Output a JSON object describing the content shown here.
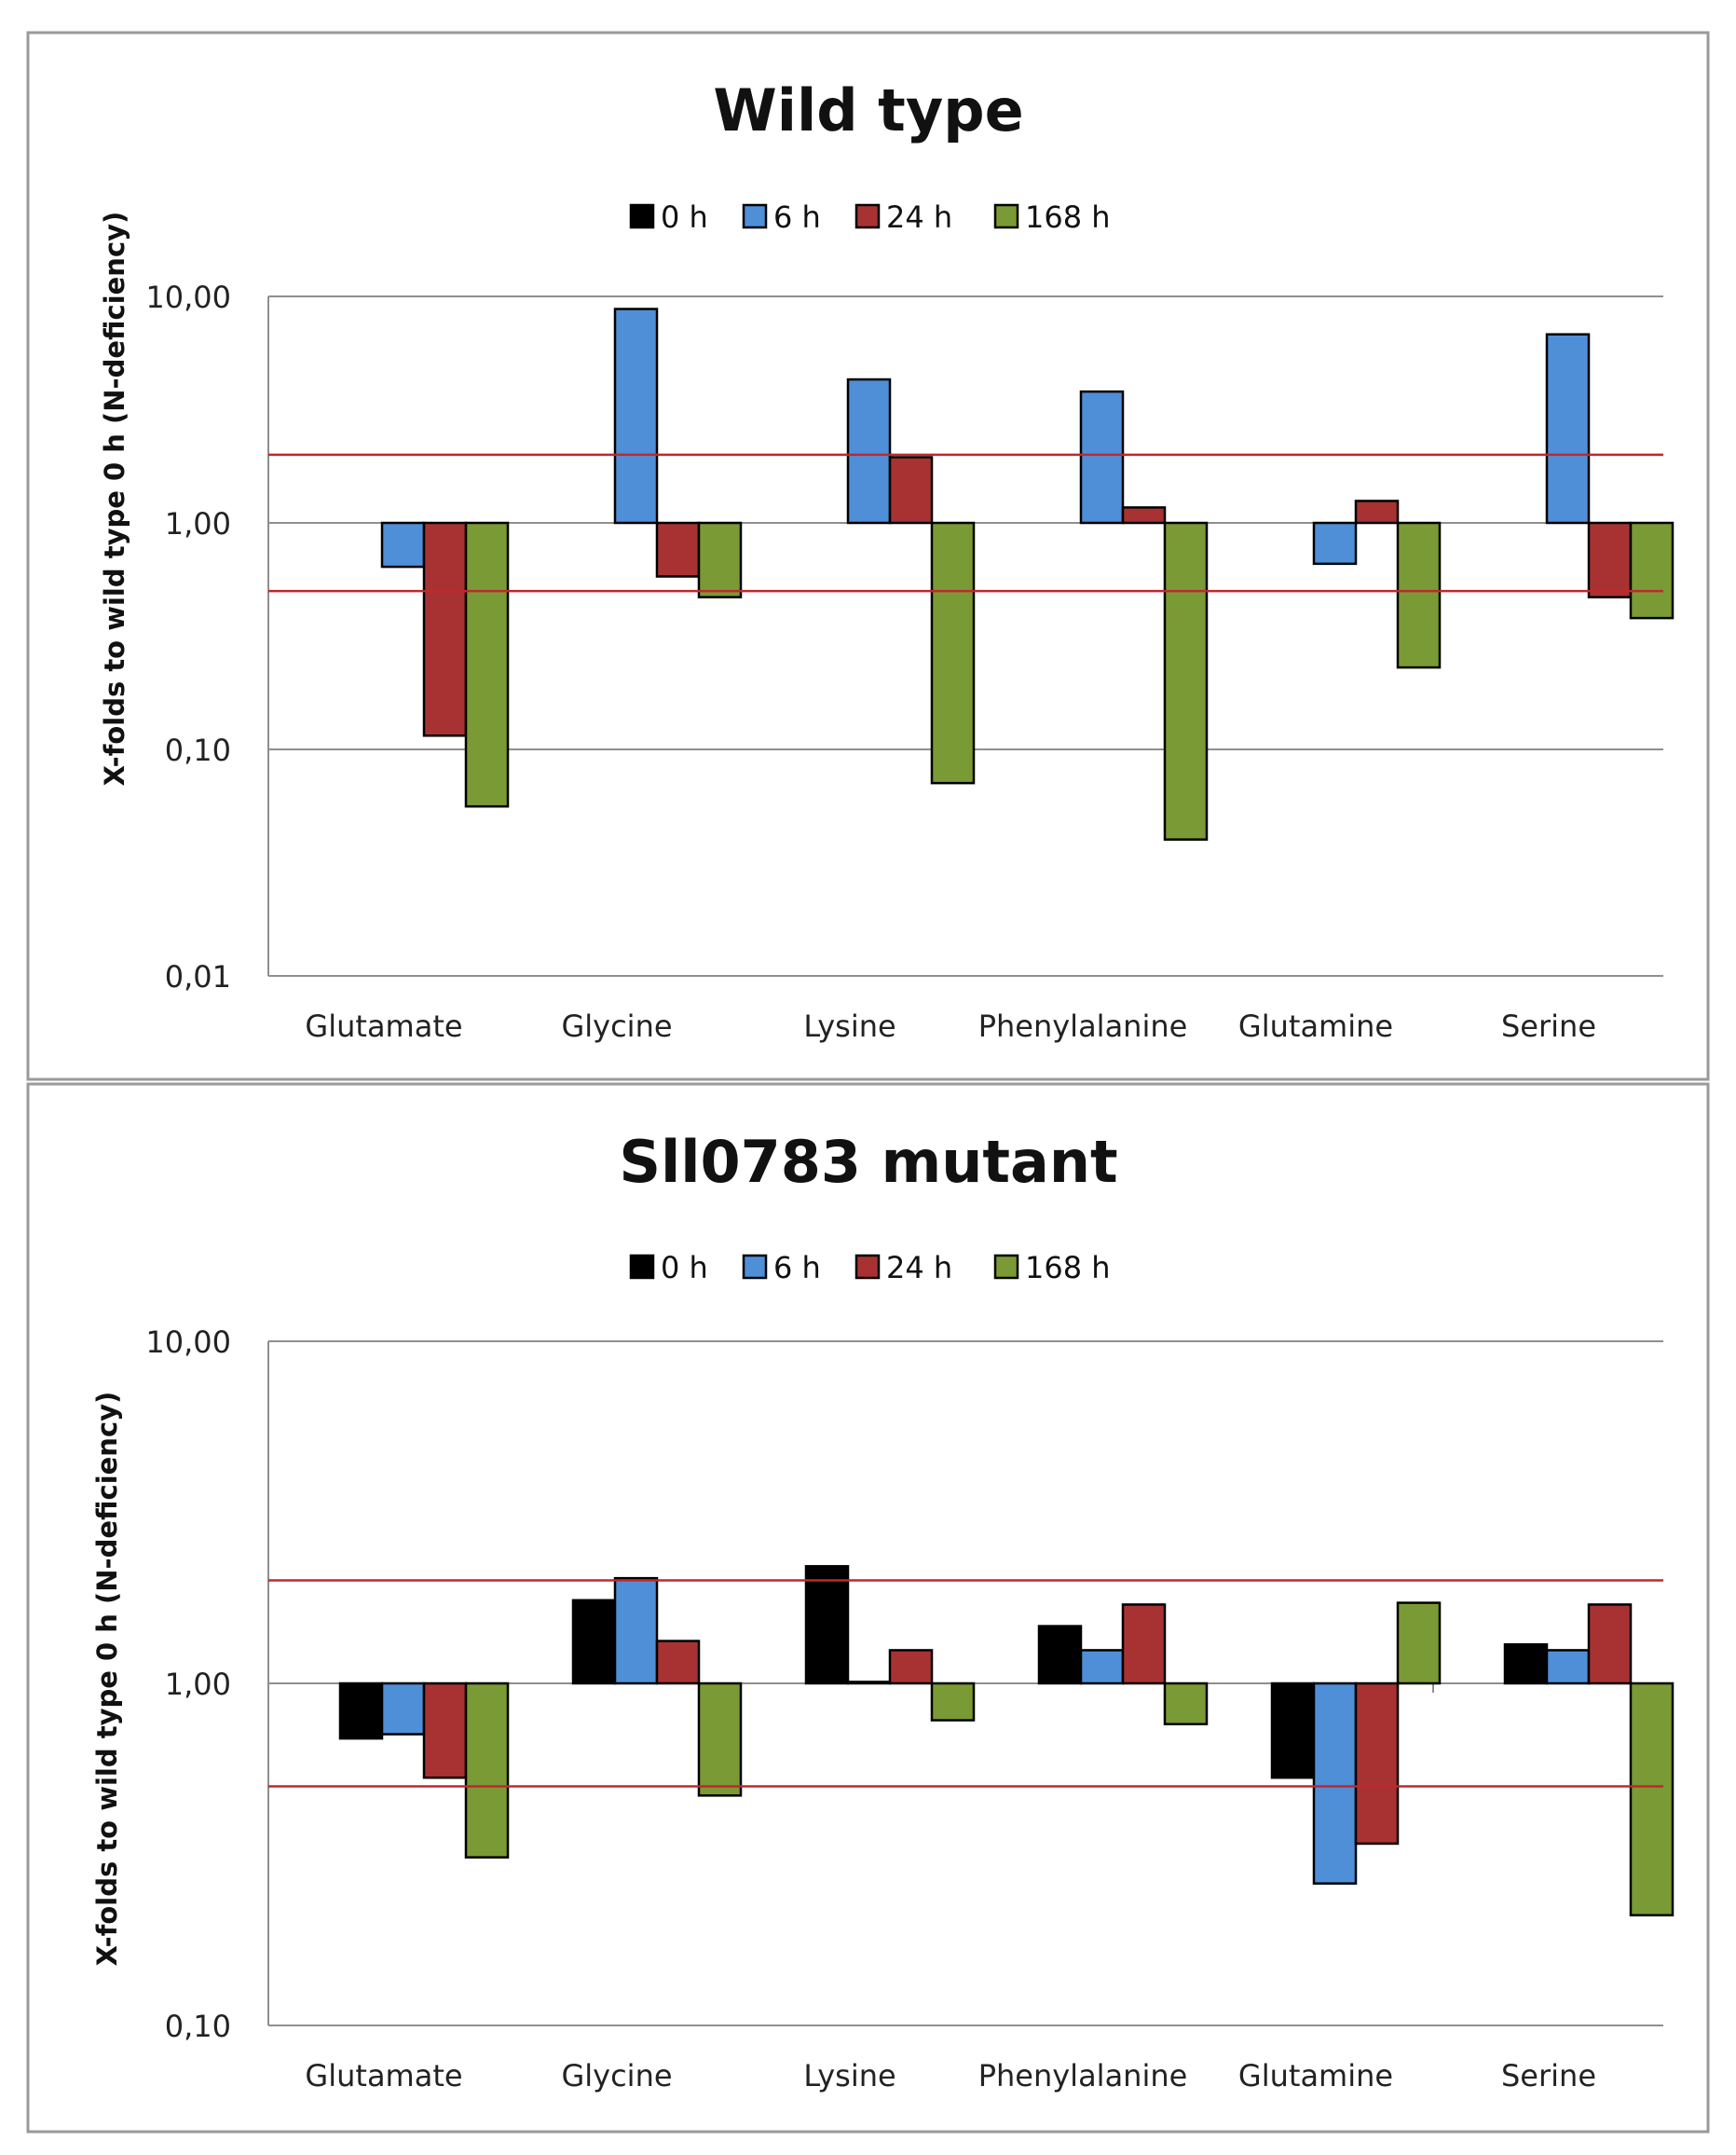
{
  "colors": {
    "s0": "#000000",
    "s1": "#4f8fd8",
    "s2": "#a83232",
    "s3": "#7a9a35",
    "threshold": "#c0282d"
  },
  "chart_data": [
    {
      "type": "bar",
      "scale": "log",
      "title": "Wild type",
      "ylabel": "X-folds to wild type 0 h (N-deficiency)",
      "xlabel": "",
      "ylim": [
        0.01,
        10
      ],
      "yticks": [
        {
          "value": 10,
          "label": "10,00"
        },
        {
          "value": 1,
          "label": "1,00"
        },
        {
          "value": 0.1,
          "label": "0,10"
        },
        {
          "value": 0.01,
          "label": "0,01"
        }
      ],
      "reference_lines": [
        2,
        0.5
      ],
      "categories": [
        "Glutamate",
        "Glycine",
        "Lysine",
        "Phenylalanine",
        "Glutamine",
        "Serine"
      ],
      "series": [
        {
          "name": "0 h",
          "values": [
            1,
            1,
            1,
            1,
            1,
            1
          ]
        },
        {
          "name": "6 h",
          "values": [
            0.64,
            8.8,
            4.3,
            3.8,
            0.66,
            6.8
          ]
        },
        {
          "name": "24 h",
          "values": [
            0.115,
            0.58,
            1.95,
            1.17,
            1.25,
            0.47
          ]
        },
        {
          "name": "168 h",
          "values": [
            0.056,
            0.47,
            0.071,
            0.04,
            0.23,
            0.38
          ]
        }
      ],
      "legend_position": "top-center",
      "grid": true
    },
    {
      "type": "bar",
      "scale": "log",
      "title": "Sll0783 mutant",
      "ylabel": "X-folds to wild type 0 h (N-deficiency)",
      "xlabel": "",
      "ylim": [
        0.1,
        10
      ],
      "yticks": [
        {
          "value": 10,
          "label": "10,00"
        },
        {
          "value": 1,
          "label": "1,00"
        },
        {
          "value": 0.1,
          "label": "0,10"
        }
      ],
      "reference_lines": [
        2,
        0.5
      ],
      "categories": [
        "Glutamate",
        "Glycine",
        "Lysine",
        "Phenylalanine",
        "Glutamine",
        "Serine"
      ],
      "series": [
        {
          "name": "0 h",
          "values": [
            0.69,
            1.75,
            2.2,
            1.47,
            0.53,
            1.3
          ]
        },
        {
          "name": "6 h",
          "values": [
            0.71,
            2.03,
            1.01,
            1.25,
            0.26,
            1.25
          ]
        },
        {
          "name": "24 h",
          "values": [
            0.53,
            1.33,
            1.25,
            1.7,
            0.34,
            1.7
          ]
        },
        {
          "name": "168 h",
          "values": [
            0.31,
            0.47,
            0.78,
            0.76,
            1.72,
            0.21
          ]
        }
      ],
      "legend_position": "top-center",
      "grid": true
    }
  ]
}
